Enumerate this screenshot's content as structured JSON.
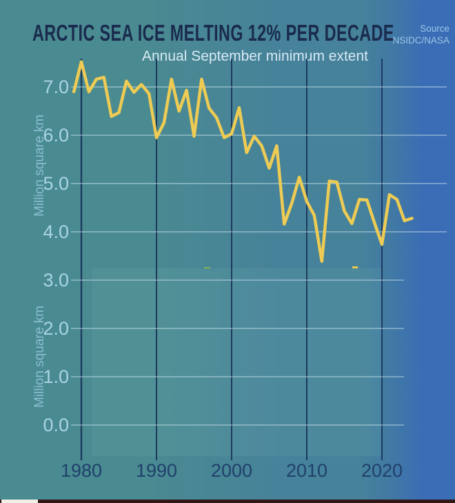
{
  "header": {
    "title": "ARCTIC SEA ICE MELTING 12% PER DECADE",
    "subtitle": "Annual September minimum extent",
    "source_label": "Source",
    "source_value": "NSIDC/NASA"
  },
  "colors": {
    "background_left": "#4a8a91",
    "background_mid": "#46829a",
    "background_right": "#3a6db5",
    "title": "#1a2b4d",
    "subtitle": "#d8e9f4",
    "source": "#9cc6e6",
    "axis_dark": "#1d3a5e",
    "grid_light": "#cfe6ee",
    "tick_label_light": "#a9d4e5",
    "x_label": "#20416b",
    "y_axis_title": "#8abfd2",
    "line": "#edcb54",
    "panel_tint": "rgba(170,225,205,0.08)",
    "artifact_green": "#7fb24f",
    "artifact_yellow": "#e8c94f",
    "bottom_bar": "#331616",
    "bottom_bar_white": "#f2efe9"
  },
  "chart_data": {
    "type": "line",
    "title": "ARCTIC SEA ICE MELTING 12% PER DECADE",
    "subtitle": "Annual September minimum extent",
    "source": "NSIDC/NASA",
    "xlabel": "",
    "ylabel": "Million square km",
    "x": [
      1979,
      1980,
      1981,
      1982,
      1983,
      1984,
      1985,
      1986,
      1987,
      1988,
      1989,
      1990,
      1991,
      1992,
      1993,
      1994,
      1995,
      1996,
      1997,
      1998,
      1999,
      2000,
      2001,
      2002,
      2003,
      2004,
      2005,
      2006,
      2007,
      2008,
      2009,
      2010,
      2011,
      2012,
      2013,
      2014,
      2015,
      2016,
      2017,
      2018,
      2019,
      2020,
      2021,
      2022,
      2023,
      2024
    ],
    "series": [
      {
        "name": "Annual September minimum extent",
        "values": [
          6.9,
          7.52,
          6.9,
          7.16,
          7.2,
          6.39,
          6.47,
          7.12,
          6.89,
          7.05,
          6.86,
          5.95,
          6.26,
          7.16,
          6.5,
          6.93,
          5.98,
          7.16,
          6.56,
          6.36,
          5.95,
          6.03,
          6.57,
          5.64,
          5.98,
          5.78,
          5.32,
          5.78,
          4.16,
          4.59,
          5.13,
          4.63,
          4.34,
          3.39,
          5.05,
          5.03,
          4.43,
          4.17,
          4.67,
          4.66,
          4.19,
          3.74,
          4.77,
          4.67,
          4.23,
          4.28
        ]
      }
    ],
    "x_ticks": [
      1980,
      1990,
      2000,
      2010,
      2020
    ],
    "y_ticks": [
      0,
      1,
      2,
      3,
      4,
      5,
      6,
      7
    ],
    "y_tick_labels": [
      "0.0",
      "1.0",
      "2.0",
      "3.0",
      "4.0",
      "5.0",
      "6.0",
      "7.0"
    ],
    "xlim": [
      1979,
      2024.5
    ],
    "ylim": [
      0,
      7.6
    ],
    "grid": true,
    "legend": "none",
    "units": "million square km"
  }
}
